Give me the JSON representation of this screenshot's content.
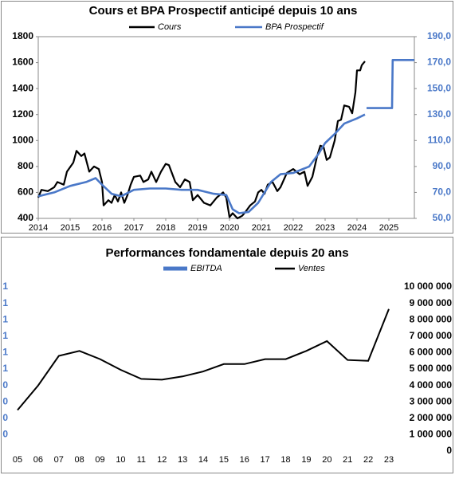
{
  "chart_data": [
    {
      "type": "line",
      "title": "Cours et BPA Prospectif anticipé depuis 10 ans",
      "xlim": [
        2014,
        2025.8
      ],
      "xticks": [
        2014,
        2015,
        2016,
        2017,
        2018,
        2019,
        2020,
        2021,
        2022,
        2023,
        2024,
        2025
      ],
      "ylim": [
        400,
        1800
      ],
      "yticks": [
        400,
        600,
        800,
        1000,
        1200,
        1400,
        1600,
        1800
      ],
      "y2lim": [
        50,
        190
      ],
      "y2ticks": [
        {
          "value": 50,
          "label": "50,0"
        },
        {
          "value": 70,
          "label": "70,0"
        },
        {
          "value": 90,
          "label": "90,0"
        },
        {
          "value": 110,
          "label": "110,0"
        },
        {
          "value": 130,
          "label": "130,0"
        },
        {
          "value": 150,
          "label": "150,0"
        },
        {
          "value": 170,
          "label": "170,0"
        },
        {
          "value": 190,
          "label": "190,0"
        }
      ],
      "series": [
        {
          "name": "Cours",
          "color": "#000000",
          "x": [
            2014.0,
            2014.1,
            2014.3,
            2014.5,
            2014.6,
            2014.8,
            2014.9,
            2015.1,
            2015.2,
            2015.35,
            2015.45,
            2015.6,
            2015.75,
            2015.9,
            2016.0,
            2016.05,
            2016.2,
            2016.3,
            2016.4,
            2016.5,
            2016.6,
            2016.7,
            2016.8,
            2016.9,
            2017.0,
            2017.2,
            2017.3,
            2017.45,
            2017.55,
            2017.7,
            2017.85,
            2018.0,
            2018.1,
            2018.3,
            2018.45,
            2018.6,
            2018.75,
            2018.85,
            2019.0,
            2019.2,
            2019.4,
            2019.6,
            2019.8,
            2019.9,
            2020.0,
            2020.1,
            2020.25,
            2020.4,
            2020.5,
            2020.65,
            2020.8,
            2020.9,
            2021.0,
            2021.1,
            2021.2,
            2021.35,
            2021.5,
            2021.6,
            2021.8,
            2022.0,
            2022.2,
            2022.35,
            2022.45,
            2022.6,
            2022.75,
            2022.85,
            2022.95,
            2023.05,
            2023.15,
            2023.3,
            2023.4,
            2023.5,
            2023.6,
            2023.75,
            2023.85,
            2023.95,
            2024.0,
            2024.1,
            2024.15,
            2024.25
          ],
          "values": [
            560,
            620,
            610,
            640,
            680,
            660,
            760,
            830,
            920,
            880,
            900,
            760,
            800,
            780,
            680,
            500,
            540,
            520,
            580,
            530,
            600,
            520,
            580,
            660,
            720,
            730,
            680,
            700,
            760,
            680,
            760,
            820,
            810,
            680,
            640,
            700,
            680,
            540,
            580,
            520,
            500,
            560,
            600,
            560,
            410,
            440,
            400,
            420,
            450,
            500,
            530,
            600,
            620,
            590,
            660,
            680,
            610,
            640,
            750,
            780,
            740,
            760,
            650,
            720,
            880,
            960,
            950,
            850,
            870,
            1000,
            1150,
            1160,
            1270,
            1260,
            1210,
            1370,
            1540,
            1540,
            1580,
            1610
          ]
        },
        {
          "name": "BPA Prospectif",
          "color": "#4a78c8",
          "axis": "y2",
          "x": [
            2014.0,
            2014.5,
            2015.0,
            2015.5,
            2015.8,
            2016.0,
            2016.3,
            2016.6,
            2017.0,
            2017.5,
            2018.0,
            2018.5,
            2019.0,
            2019.5,
            2019.9,
            2020.1,
            2020.3,
            2020.6,
            2020.9,
            2021.3,
            2021.6,
            2022.0,
            2022.5,
            2022.8,
            2023.0,
            2023.3,
            2023.6,
            2024.0,
            2024.25,
            2024.27,
            2024.3,
            2025.1,
            2025.12,
            2025.8
          ],
          "values": [
            67,
            70,
            75,
            78,
            81,
            76,
            69,
            67,
            72,
            73,
            73,
            72,
            72,
            69,
            68,
            57,
            54,
            55,
            62,
            78,
            84,
            85,
            90,
            100,
            108,
            115,
            123,
            127,
            130,
            null,
            135,
            135,
            172,
            172
          ]
        }
      ]
    },
    {
      "type": "line",
      "title": "Performances fondamentale depuis 20 ans",
      "categories": [
        "05",
        "06",
        "07",
        "08",
        "09",
        "10",
        "11",
        "12",
        "13",
        "14",
        "15",
        "16",
        "17",
        "18",
        "19",
        "20",
        "21",
        "22",
        "23"
      ],
      "left_axis_labels": [
        "1",
        "1",
        "1",
        "1",
        "1",
        "1",
        "0",
        "0",
        "0",
        "0"
      ],
      "y2lim": [
        0,
        10000000
      ],
      "y2ticks": [
        0,
        {
          "value": 1000000,
          "label": "1 000 000"
        },
        {
          "value": 2000000,
          "label": "2 000 000"
        },
        {
          "value": 3000000,
          "label": "3 000 000"
        },
        {
          "value": 4000000,
          "label": "4 000 000"
        },
        {
          "value": 5000000,
          "label": "5 000 000"
        },
        {
          "value": 6000000,
          "label": "6 000 000"
        },
        {
          "value": 7000000,
          "label": "7 000 000"
        },
        {
          "value": 8000000,
          "label": "8 000 000"
        },
        {
          "value": 9000000,
          "label": "9 000 000"
        },
        {
          "value": 10000000,
          "label": "10 000 000"
        }
      ],
      "series": [
        {
          "name": "EBITDA",
          "color": "#4a78c8",
          "values": [
            null,
            null,
            null,
            null,
            null,
            null,
            null,
            null,
            null,
            null,
            null,
            null,
            null,
            null,
            null,
            null,
            null,
            null,
            null
          ]
        },
        {
          "name": "Ventes",
          "color": "#000000",
          "axis": "y2",
          "values": [
            2500000,
            4000000,
            5800000,
            6100000,
            5600000,
            4950000,
            4400000,
            4350000,
            4550000,
            4850000,
            5300000,
            5300000,
            5600000,
            5600000,
            6100000,
            6700000,
            5550000,
            5500000,
            8650000
          ]
        }
      ]
    }
  ]
}
